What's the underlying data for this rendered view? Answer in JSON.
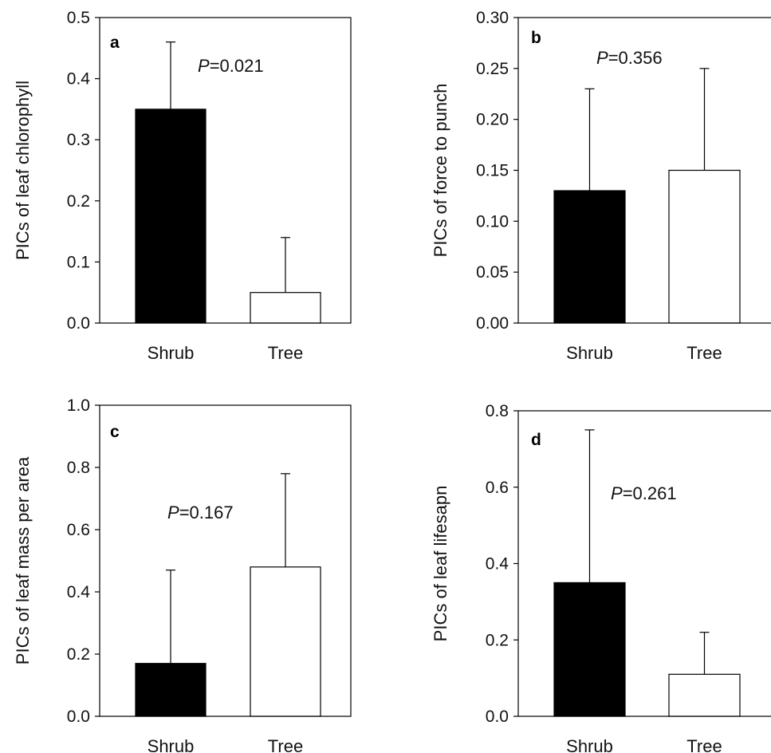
{
  "chart_data": [
    {
      "type": "bar",
      "panel": "a",
      "ylabel": "PICs of leaf chlorophyll",
      "categories": [
        "Shrub",
        "Tree"
      ],
      "values": [
        0.35,
        0.05
      ],
      "error_upper": [
        0.46,
        0.14
      ],
      "bar_colors": [
        "#000000",
        "#ffffff"
      ],
      "annotation_prefix": "P",
      "annotation_value": "=0.021",
      "ylim": [
        0,
        0.5
      ],
      "yticks": [
        0.0,
        0.1,
        0.2,
        0.3,
        0.4,
        0.5
      ],
      "ytick_labels": [
        "0.0",
        "0.1",
        "0.2",
        "0.3",
        "0.4",
        "0.5"
      ]
    },
    {
      "type": "bar",
      "panel": "b",
      "ylabel": "PICs of  force to punch",
      "categories": [
        "Shrub",
        "Tree"
      ],
      "values": [
        0.13,
        0.15
      ],
      "error_upper": [
        0.23,
        0.25
      ],
      "bar_colors": [
        "#000000",
        "#ffffff"
      ],
      "annotation_prefix": "P",
      "annotation_value": "=0.356",
      "ylim": [
        0,
        0.3
      ],
      "yticks": [
        0.0,
        0.05,
        0.1,
        0.15,
        0.2,
        0.25,
        0.3
      ],
      "ytick_labels": [
        "0.00",
        "0.05",
        "0.10",
        "0.15",
        "0.20",
        "0.25",
        "0.30"
      ]
    },
    {
      "type": "bar",
      "panel": "c",
      "ylabel": "PICs of leaf mass per area",
      "categories": [
        "Shrub",
        "Tree"
      ],
      "values": [
        0.17,
        0.48
      ],
      "error_upper": [
        0.47,
        0.78
      ],
      "bar_colors": [
        "#000000",
        "#ffffff"
      ],
      "annotation_prefix": "P",
      "annotation_value": "=0.167",
      "ylim": [
        0,
        1.0
      ],
      "yticks": [
        0.0,
        0.2,
        0.4,
        0.6,
        0.8,
        1.0
      ],
      "ytick_labels": [
        "0.0",
        "0.2",
        "0.4",
        "0.6",
        "0.8",
        "1.0"
      ]
    },
    {
      "type": "bar",
      "panel": "d",
      "ylabel": "PICs of leaf lifesapn",
      "categories": [
        "Shrub",
        "Tree"
      ],
      "values": [
        0.35,
        0.11
      ],
      "error_upper": [
        0.75,
        0.22
      ],
      "bar_colors": [
        "#000000",
        "#ffffff"
      ],
      "annotation_prefix": "P",
      "annotation_value": "=0.261",
      "ylim": [
        0,
        0.8
      ],
      "yticks": [
        0.0,
        0.2,
        0.4,
        0.6,
        0.8
      ],
      "ytick_labels": [
        "0.0",
        "0.2",
        "0.4",
        "0.6",
        "0.8"
      ]
    }
  ]
}
